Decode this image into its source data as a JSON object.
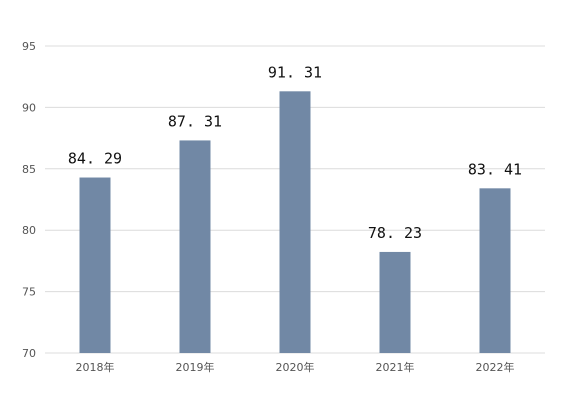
{
  "chart_data": {
    "type": "bar",
    "categories": [
      "2018年",
      "2019年",
      "2020年",
      "2021年",
      "2022年"
    ],
    "values": [
      84.29,
      87.31,
      91.31,
      78.23,
      83.41
    ],
    "data_labels": [
      "84. 29",
      "87. 31",
      "91. 31",
      "78. 23",
      "83. 41"
    ],
    "title": "",
    "xlabel": "",
    "ylabel": "",
    "ylim": [
      70,
      95
    ],
    "yticks": [
      95,
      90,
      85,
      80,
      75,
      70
    ],
    "grid": true,
    "legend": "none",
    "bar_color": "#7188a5",
    "grid_color": "#dcdcdc"
  }
}
